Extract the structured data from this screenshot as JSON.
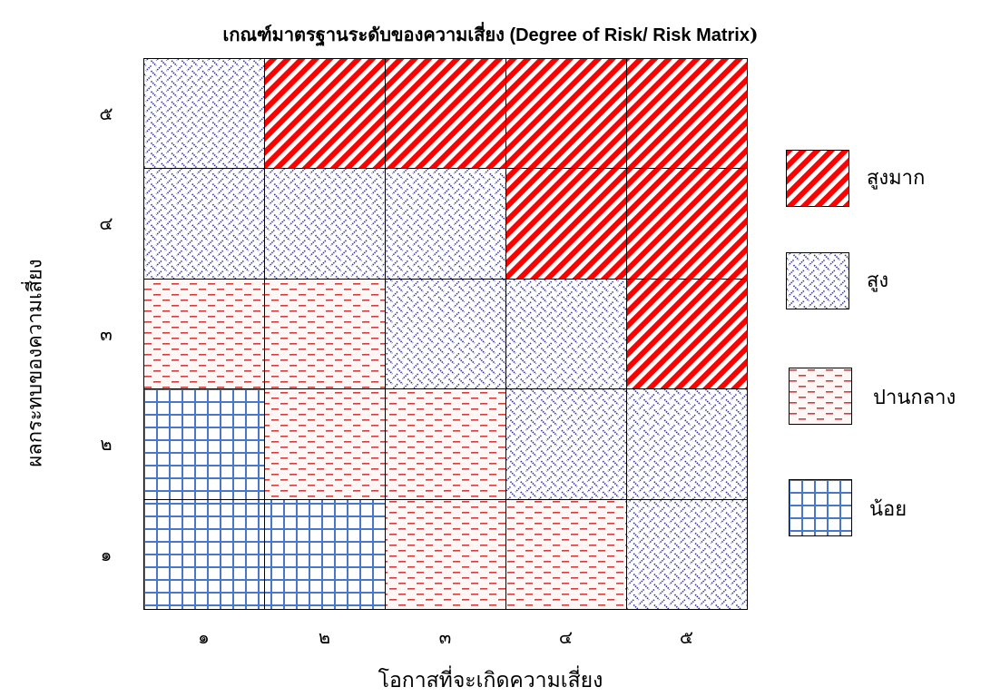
{
  "title": {
    "thai": "เกณฑ์มาตรฐานระดับของความเสี่ยง",
    "english_open": " (",
    "english": "Degree of Risk/ Risk Matrix",
    "english_close": ")"
  },
  "y_axis_label": "ผลกระทบของความเสี่ยง",
  "x_axis_label": "โอกาสที่จะเกิดความเสี่ยง",
  "x_ticks": [
    "๑",
    "๒",
    "๓",
    "๔",
    "๕"
  ],
  "y_ticks": [
    "๕",
    "๔",
    "๓",
    "๒",
    "๑"
  ],
  "levels": {
    "very_high": {
      "label": "สูงมาก",
      "color": "#ff0000",
      "pattern": "diagonal-stripes"
    },
    "high": {
      "label": "สูง",
      "color": "#1f1f8f",
      "pattern": "brick-weave"
    },
    "medium": {
      "label": "ปานกลาง",
      "color": "#d43b3b",
      "pattern": "dashes"
    },
    "low": {
      "label": "น้อย",
      "color": "#4a78c8",
      "pattern": "grid"
    }
  },
  "matrix_rows": [
    [
      "high",
      "very_high",
      "very_high",
      "very_high",
      "very_high"
    ],
    [
      "high",
      "high",
      "high",
      "very_high",
      "very_high"
    ],
    [
      "medium",
      "medium",
      "high",
      "high",
      "very_high"
    ],
    [
      "low",
      "medium",
      "medium",
      "high",
      "high"
    ],
    [
      "low",
      "low",
      "medium",
      "medium",
      "high"
    ]
  ],
  "legend_order": [
    "very_high",
    "high",
    "medium",
    "low"
  ]
}
